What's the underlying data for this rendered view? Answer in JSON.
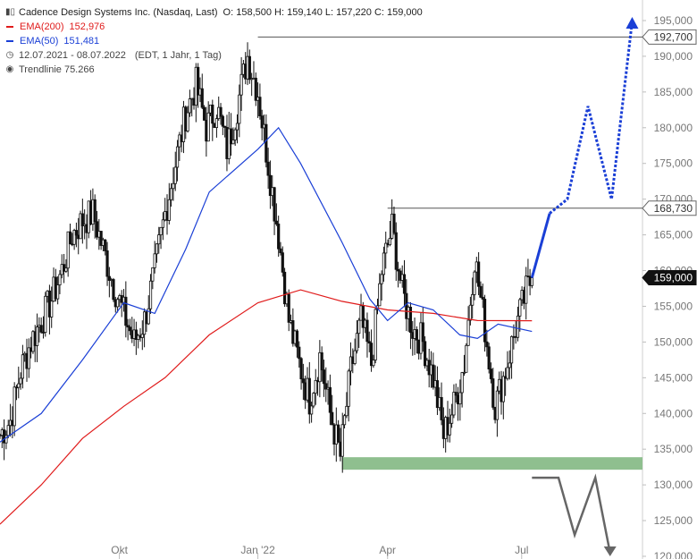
{
  "header": {
    "title": "Cadence Design Systems Inc. (Nasdaq, Last)",
    "ohlc": "O: 158,500   H: 159,140   L: 157,220   C: 159,000"
  },
  "legend": [
    {
      "label": "EMA(200)",
      "value": "152,976",
      "color": "#e01b1b"
    },
    {
      "label": "EMA(50)",
      "value": "151,481",
      "color": "#1a3fd6"
    }
  ],
  "meta": {
    "range": "12.07.2021 - 08.07.2022",
    "settings": "(EDT, 1 Jahr, 1 Tag)",
    "trend": "Trendlinie  75.266"
  },
  "chart_data": {
    "type": "candlestick",
    "y_axis": {
      "side": "right",
      "ylim": [
        120000,
        196000
      ],
      "ticks": [
        120000,
        125000,
        130000,
        135000,
        140000,
        145000,
        150000,
        155000,
        160000,
        165000,
        170000,
        175000,
        180000,
        185000,
        190000,
        195000
      ],
      "tick_labels": [
        "120,000",
        "125,000",
        "130,000",
        "135,000",
        "140,000",
        "145,000",
        "150,000",
        "155,000",
        "160,000",
        "165,000",
        "170,000",
        "175,000",
        "180,000",
        "185,000",
        "190,000",
        "195,000"
      ]
    },
    "x_axis": {
      "start": "2021-07-12",
      "end": "2022-09-21",
      "labels": [
        {
          "date": "2021-10-01",
          "text": "Okt"
        },
        {
          "date": "2022-01-03",
          "text": "Jan '22"
        },
        {
          "date": "2022-04-01",
          "text": "Apr"
        },
        {
          "date": "2022-07-01",
          "text": "Jul"
        }
      ]
    },
    "close_series": [
      [
        "2021-07-12",
        137000
      ],
      [
        "2021-07-19",
        139000
      ],
      [
        "2021-07-26",
        146000
      ],
      [
        "2021-08-02",
        150000
      ],
      [
        "2021-08-09",
        153000
      ],
      [
        "2021-08-16",
        156000
      ],
      [
        "2021-08-23",
        160000
      ],
      [
        "2021-08-30",
        165000
      ],
      [
        "2021-09-06",
        167000
      ],
      [
        "2021-09-13",
        168000
      ],
      [
        "2021-09-20",
        163000
      ],
      [
        "2021-09-27",
        158000
      ],
      [
        "2021-10-04",
        154000
      ],
      [
        "2021-10-11",
        150000
      ],
      [
        "2021-10-18",
        153000
      ],
      [
        "2021-10-25",
        160000
      ],
      [
        "2021-11-01",
        168000
      ],
      [
        "2021-11-08",
        175000
      ],
      [
        "2021-11-15",
        182000
      ],
      [
        "2021-11-22",
        186000
      ],
      [
        "2021-11-29",
        180000
      ],
      [
        "2021-12-06",
        183000
      ],
      [
        "2021-12-13",
        177000
      ],
      [
        "2021-12-20",
        183000
      ],
      [
        "2021-12-27",
        190000
      ],
      [
        "2022-01-03",
        185000
      ],
      [
        "2022-01-10",
        175000
      ],
      [
        "2022-01-17",
        165000
      ],
      [
        "2022-01-24",
        153000
      ],
      [
        "2022-01-31",
        147000
      ],
      [
        "2022-02-07",
        142000
      ],
      [
        "2022-02-14",
        148000
      ],
      [
        "2022-02-21",
        140000
      ],
      [
        "2022-02-28",
        134000
      ],
      [
        "2022-03-07",
        146000
      ],
      [
        "2022-03-14",
        153000
      ],
      [
        "2022-03-21",
        147000
      ],
      [
        "2022-03-28",
        160000
      ],
      [
        "2022-04-04",
        166000
      ],
      [
        "2022-04-11",
        157000
      ],
      [
        "2022-04-18",
        152000
      ],
      [
        "2022-04-25",
        150000
      ],
      [
        "2022-05-02",
        145000
      ],
      [
        "2022-05-09",
        137000
      ],
      [
        "2022-05-16",
        141000
      ],
      [
        "2022-05-23",
        147000
      ],
      [
        "2022-05-30",
        162000
      ],
      [
        "2022-06-06",
        152000
      ],
      [
        "2022-06-13",
        141000
      ],
      [
        "2022-06-20",
        146000
      ],
      [
        "2022-06-27",
        152000
      ],
      [
        "2022-07-04",
        157000
      ],
      [
        "2022-07-08",
        159000
      ]
    ],
    "series": [
      {
        "name": "EMA(200)",
        "color": "#e01b1b",
        "points": [
          [
            "2021-07-12",
            124500
          ],
          [
            "2021-08-09",
            130000
          ],
          [
            "2021-09-06",
            136500
          ],
          [
            "2021-10-04",
            141000
          ],
          [
            "2021-11-01",
            145000
          ],
          [
            "2021-12-01",
            151000
          ],
          [
            "2022-01-03",
            155500
          ],
          [
            "2022-02-01",
            157300
          ],
          [
            "2022-03-01",
            155700
          ],
          [
            "2022-04-01",
            154500
          ],
          [
            "2022-05-02",
            154000
          ],
          [
            "2022-06-01",
            153000
          ],
          [
            "2022-07-08",
            152976
          ]
        ]
      },
      {
        "name": "EMA(50)",
        "color": "#1a3fd6",
        "points": [
          [
            "2021-07-12",
            136000
          ],
          [
            "2021-08-09",
            140000
          ],
          [
            "2021-09-06",
            147500
          ],
          [
            "2021-10-04",
            155500
          ],
          [
            "2021-10-25",
            154000
          ],
          [
            "2021-11-15",
            163000
          ],
          [
            "2021-12-01",
            171000
          ],
          [
            "2022-01-03",
            177000
          ],
          [
            "2022-01-17",
            180000
          ],
          [
            "2022-02-01",
            175000
          ],
          [
            "2022-03-01",
            164000
          ],
          [
            "2022-03-20",
            156000
          ],
          [
            "2022-04-01",
            153000
          ],
          [
            "2022-04-15",
            155500
          ],
          [
            "2022-05-02",
            154500
          ],
          [
            "2022-05-20",
            151000
          ],
          [
            "2022-06-01",
            150500
          ],
          [
            "2022-06-15",
            152500
          ],
          [
            "2022-07-08",
            151481
          ]
        ]
      }
    ],
    "price_tags": [
      {
        "value": "192,700",
        "price": 192700,
        "bg": "#ffffff",
        "fg": "#333333"
      },
      {
        "value": "168,730",
        "price": 168730,
        "bg": "#ffffff",
        "fg": "#333333"
      },
      {
        "value": "159,000",
        "price": 159000,
        "bg": "#111111",
        "fg": "#ffffff"
      }
    ],
    "annotations": {
      "resistance_lines": [
        {
          "price": 192700,
          "from": "2022-01-03",
          "color": "#555555"
        },
        {
          "price": 168730,
          "from": "2022-04-01",
          "color": "#555555"
        }
      ],
      "support_zone": {
        "from": "2022-03-01",
        "low": 132500,
        "high": 133500,
        "color": "#8fbf8f"
      },
      "bull_path": {
        "color": "#1a3fd6",
        "points": [
          [
            "2022-07-08",
            159000
          ],
          [
            "2022-07-20",
            168000
          ],
          [
            "2022-08-01",
            170000
          ],
          [
            "2022-08-15",
            183000
          ],
          [
            "2022-08-31",
            170000
          ],
          [
            "2022-09-14",
            195000
          ]
        ]
      },
      "bear_path": {
        "color": "#666666",
        "points": [
          [
            "2022-07-08",
            131000
          ],
          [
            "2022-07-26",
            131000
          ],
          [
            "2022-08-06",
            123000
          ],
          [
            "2022-08-20",
            131000
          ],
          [
            "2022-08-30",
            120500
          ]
        ]
      }
    }
  }
}
